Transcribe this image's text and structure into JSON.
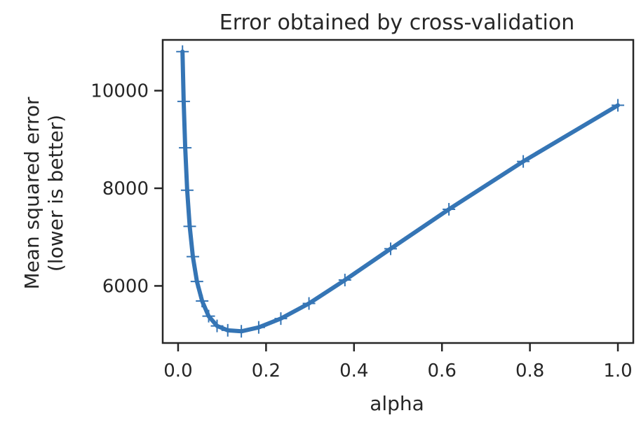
{
  "chart_data": {
    "type": "line",
    "title": "Error obtained by cross-validation",
    "xlabel": "alpha",
    "ylabel_lines": [
      "Mean squared error",
      "(lower is better)"
    ],
    "xlim": [
      -0.035,
      1.035
    ],
    "ylim": [
      4830,
      11040
    ],
    "xticks": [
      0.0,
      0.2,
      0.4,
      0.6,
      0.8,
      1.0
    ],
    "xtick_labels": [
      "0.0",
      "0.2",
      "0.4",
      "0.6",
      "0.8",
      "1.0"
    ],
    "yticks": [
      6000,
      8000,
      10000
    ],
    "ytick_labels": [
      "6000",
      "8000",
      "10000"
    ],
    "grid": false,
    "marker": "+",
    "line_color": "#3575b5",
    "series": [
      {
        "x": [
          0.01,
          0.0127,
          0.0162,
          0.0207,
          0.0264,
          0.0336,
          0.0428,
          0.0546,
          0.0695,
          0.0886,
          0.1129,
          0.1438,
          0.1833,
          0.2336,
          0.2976,
          0.3793,
          0.4833,
          0.6158,
          0.7848,
          1.0
        ],
        "y": [
          10800,
          9780,
          8830,
          7960,
          7220,
          6600,
          6090,
          5690,
          5380,
          5180,
          5090,
          5070,
          5150,
          5330,
          5640,
          6120,
          6760,
          7570,
          8550,
          9700
        ]
      }
    ]
  }
}
